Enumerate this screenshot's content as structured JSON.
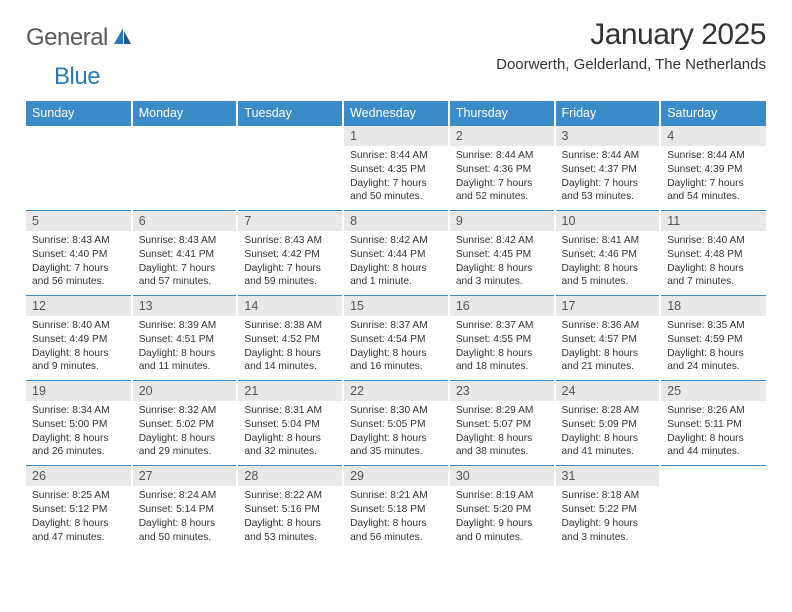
{
  "logo": {
    "text1": "General",
    "text2": "Blue"
  },
  "title": "January 2025",
  "location": "Doorwerth, Gelderland, The Netherlands",
  "theme": {
    "header_bg": "#3b8bc8",
    "header_text": "#ffffff",
    "daynum_bg": "#e8e8e8",
    "daynum_text": "#555555",
    "body_text": "#333333",
    "logo_gray": "#5a5a5a",
    "logo_blue": "#2a7ab9",
    "row_divider": "#3b8bc8"
  },
  "days": [
    "Sunday",
    "Monday",
    "Tuesday",
    "Wednesday",
    "Thursday",
    "Friday",
    "Saturday"
  ],
  "weeks": [
    [
      null,
      null,
      null,
      {
        "n": "1",
        "sr": "8:44 AM",
        "ss": "4:35 PM",
        "dl": "7 hours and 50 minutes."
      },
      {
        "n": "2",
        "sr": "8:44 AM",
        "ss": "4:36 PM",
        "dl": "7 hours and 52 minutes."
      },
      {
        "n": "3",
        "sr": "8:44 AM",
        "ss": "4:37 PM",
        "dl": "7 hours and 53 minutes."
      },
      {
        "n": "4",
        "sr": "8:44 AM",
        "ss": "4:39 PM",
        "dl": "7 hours and 54 minutes."
      }
    ],
    [
      {
        "n": "5",
        "sr": "8:43 AM",
        "ss": "4:40 PM",
        "dl": "7 hours and 56 minutes."
      },
      {
        "n": "6",
        "sr": "8:43 AM",
        "ss": "4:41 PM",
        "dl": "7 hours and 57 minutes."
      },
      {
        "n": "7",
        "sr": "8:43 AM",
        "ss": "4:42 PM",
        "dl": "7 hours and 59 minutes."
      },
      {
        "n": "8",
        "sr": "8:42 AM",
        "ss": "4:44 PM",
        "dl": "8 hours and 1 minute."
      },
      {
        "n": "9",
        "sr": "8:42 AM",
        "ss": "4:45 PM",
        "dl": "8 hours and 3 minutes."
      },
      {
        "n": "10",
        "sr": "8:41 AM",
        "ss": "4:46 PM",
        "dl": "8 hours and 5 minutes."
      },
      {
        "n": "11",
        "sr": "8:40 AM",
        "ss": "4:48 PM",
        "dl": "8 hours and 7 minutes."
      }
    ],
    [
      {
        "n": "12",
        "sr": "8:40 AM",
        "ss": "4:49 PM",
        "dl": "8 hours and 9 minutes."
      },
      {
        "n": "13",
        "sr": "8:39 AM",
        "ss": "4:51 PM",
        "dl": "8 hours and 11 minutes."
      },
      {
        "n": "14",
        "sr": "8:38 AM",
        "ss": "4:52 PM",
        "dl": "8 hours and 14 minutes."
      },
      {
        "n": "15",
        "sr": "8:37 AM",
        "ss": "4:54 PM",
        "dl": "8 hours and 16 minutes."
      },
      {
        "n": "16",
        "sr": "8:37 AM",
        "ss": "4:55 PM",
        "dl": "8 hours and 18 minutes."
      },
      {
        "n": "17",
        "sr": "8:36 AM",
        "ss": "4:57 PM",
        "dl": "8 hours and 21 minutes."
      },
      {
        "n": "18",
        "sr": "8:35 AM",
        "ss": "4:59 PM",
        "dl": "8 hours and 24 minutes."
      }
    ],
    [
      {
        "n": "19",
        "sr": "8:34 AM",
        "ss": "5:00 PM",
        "dl": "8 hours and 26 minutes."
      },
      {
        "n": "20",
        "sr": "8:32 AM",
        "ss": "5:02 PM",
        "dl": "8 hours and 29 minutes."
      },
      {
        "n": "21",
        "sr": "8:31 AM",
        "ss": "5:04 PM",
        "dl": "8 hours and 32 minutes."
      },
      {
        "n": "22",
        "sr": "8:30 AM",
        "ss": "5:05 PM",
        "dl": "8 hours and 35 minutes."
      },
      {
        "n": "23",
        "sr": "8:29 AM",
        "ss": "5:07 PM",
        "dl": "8 hours and 38 minutes."
      },
      {
        "n": "24",
        "sr": "8:28 AM",
        "ss": "5:09 PM",
        "dl": "8 hours and 41 minutes."
      },
      {
        "n": "25",
        "sr": "8:26 AM",
        "ss": "5:11 PM",
        "dl": "8 hours and 44 minutes."
      }
    ],
    [
      {
        "n": "26",
        "sr": "8:25 AM",
        "ss": "5:12 PM",
        "dl": "8 hours and 47 minutes."
      },
      {
        "n": "27",
        "sr": "8:24 AM",
        "ss": "5:14 PM",
        "dl": "8 hours and 50 minutes."
      },
      {
        "n": "28",
        "sr": "8:22 AM",
        "ss": "5:16 PM",
        "dl": "8 hours and 53 minutes."
      },
      {
        "n": "29",
        "sr": "8:21 AM",
        "ss": "5:18 PM",
        "dl": "8 hours and 56 minutes."
      },
      {
        "n": "30",
        "sr": "8:19 AM",
        "ss": "5:20 PM",
        "dl": "9 hours and 0 minutes."
      },
      {
        "n": "31",
        "sr": "8:18 AM",
        "ss": "5:22 PM",
        "dl": "9 hours and 3 minutes."
      },
      null
    ]
  ],
  "labels": {
    "sunrise": "Sunrise:",
    "sunset": "Sunset:",
    "daylight": "Daylight:"
  }
}
